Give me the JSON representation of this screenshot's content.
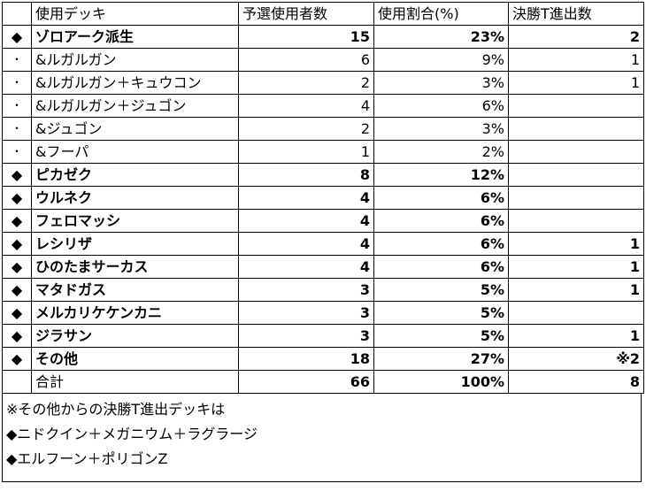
{
  "headers": {
    "mark": "",
    "deck": "使用デッキ",
    "prelim": "予選使用者数",
    "ratio": "使用割合(%)",
    "top": "決勝T進出数"
  },
  "rows": [
    {
      "mark": "◆",
      "deck": "ゾロアーク派生",
      "prelim": "15",
      "ratio": "23%",
      "top": "2",
      "bold": true
    },
    {
      "mark": "・",
      "deck": "&ルガルガン",
      "prelim": "6",
      "ratio": "9%",
      "top": "1",
      "bold": false
    },
    {
      "mark": "・",
      "deck": "&ルガルガン＋キュウコン",
      "prelim": "2",
      "ratio": "3%",
      "top": "1",
      "bold": false
    },
    {
      "mark": "・",
      "deck": "&ルガルガン＋ジュゴン",
      "prelim": "4",
      "ratio": "6%",
      "top": "",
      "bold": false
    },
    {
      "mark": "・",
      "deck": "&ジュゴン",
      "prelim": "2",
      "ratio": "3%",
      "top": "",
      "bold": false
    },
    {
      "mark": "・",
      "deck": "&フーパ",
      "prelim": "1",
      "ratio": "2%",
      "top": "",
      "bold": false
    },
    {
      "mark": "◆",
      "deck": "ピカゼク",
      "prelim": "8",
      "ratio": "12%",
      "top": "",
      "bold": true
    },
    {
      "mark": "◆",
      "deck": "ウルネク",
      "prelim": "4",
      "ratio": "6%",
      "top": "",
      "bold": true
    },
    {
      "mark": "◆",
      "deck": "フェロマッシ",
      "prelim": "4",
      "ratio": "6%",
      "top": "",
      "bold": true
    },
    {
      "mark": "◆",
      "deck": "レシリザ",
      "prelim": "4",
      "ratio": "6%",
      "top": "1",
      "bold": true
    },
    {
      "mark": "◆",
      "deck": "ひのたまサーカス",
      "prelim": "4",
      "ratio": "6%",
      "top": "1",
      "bold": true
    },
    {
      "mark": "◆",
      "deck": "マタドガス",
      "prelim": "3",
      "ratio": "5%",
      "top": "1",
      "bold": true
    },
    {
      "mark": "◆",
      "deck": "メルカリケケンカニ",
      "prelim": "3",
      "ratio": "5%",
      "top": "",
      "bold": true
    },
    {
      "mark": "◆",
      "deck": "ジラサン",
      "prelim": "3",
      "ratio": "5%",
      "top": "1",
      "bold": true
    },
    {
      "mark": "◆",
      "deck": "その他",
      "prelim": "18",
      "ratio": "27%",
      "top": "※2",
      "bold": true
    }
  ],
  "total": {
    "mark": "",
    "deck": "合計",
    "prelim": "66",
    "ratio": "100%",
    "top": "8"
  },
  "notes": [
    "※その他からの決勝T進出デッキは",
    "◆ニドクイン＋メガニウム＋ラグラージ",
    "◆エルフーン＋ポリゴンZ"
  ]
}
